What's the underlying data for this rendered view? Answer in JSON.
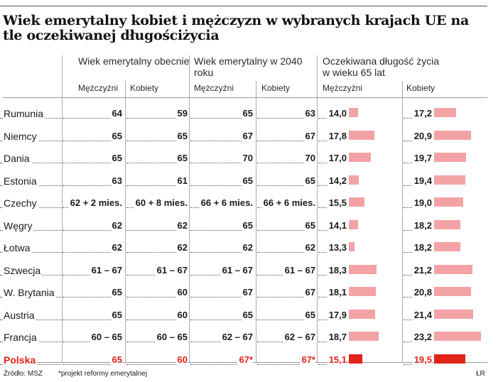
{
  "title": "Wiek emerytalny kobiet i mężczyzn w wybranych krajach UE na tle oczekiwanej długościżycia",
  "groups": [
    {
      "label": "Wiek emerytalny obecnie"
    },
    {
      "label": "Wiek emerytalny w 2040 roku"
    },
    {
      "label": "Oczekiwana długość życia w wieku 65 lat"
    }
  ],
  "subheaders": [
    "Mężczyźni",
    "Kobiety",
    "Mężczyźni",
    "Kobiety",
    "Mężczyźni",
    "Kobiety"
  ],
  "rows": [
    {
      "country": "Rumunia",
      "m_now": "64",
      "k_now": "59",
      "m_2040": "65",
      "k_2040": "63",
      "le_m": "14,0",
      "le_k": "17,2"
    },
    {
      "country": "Niemcy",
      "m_now": "65",
      "k_now": "65",
      "m_2040": "67",
      "k_2040": "67",
      "le_m": "17,8",
      "le_k": "20,9"
    },
    {
      "country": "Dania",
      "m_now": "65",
      "k_now": "65",
      "m_2040": "70",
      "k_2040": "70",
      "le_m": "17,0",
      "le_k": "19,7"
    },
    {
      "country": "Estonia",
      "m_now": "63",
      "k_now": "61",
      "m_2040": "65",
      "k_2040": "65",
      "le_m": "14,2",
      "le_k": "19,4"
    },
    {
      "country": "Czechy",
      "m_now": "62 + 2 mies.",
      "k_now": "60 + 8 mies.",
      "m_2040": "66 + 6 mies.",
      "k_2040": "66 + 6 mies.",
      "le_m": "15,5",
      "le_k": "19,0"
    },
    {
      "country": "Węgry",
      "m_now": "62",
      "k_now": "62",
      "m_2040": "65",
      "k_2040": "65",
      "le_m": "14,1",
      "le_k": "18,2"
    },
    {
      "country": "Łotwa",
      "m_now": "62",
      "k_now": "62",
      "m_2040": "62",
      "k_2040": "62",
      "le_m": "13,3",
      "le_k": "18,2"
    },
    {
      "country": "Szwecja",
      "m_now": "61 – 67",
      "k_now": "61 – 67",
      "m_2040": "61 – 67",
      "k_2040": "61 – 67",
      "le_m": "18,3",
      "le_k": "21,2"
    },
    {
      "country": "W. Brytania",
      "m_now": "65",
      "k_now": "60",
      "m_2040": "67",
      "k_2040": "67",
      "le_m": "18,1",
      "le_k": "20,8"
    },
    {
      "country": "Austria",
      "m_now": "65",
      "k_now": "60",
      "m_2040": "65",
      "k_2040": "65",
      "le_m": "17,9",
      "le_k": "21,4"
    },
    {
      "country": "Francja",
      "m_now": "60 – 65",
      "k_now": "60 – 65",
      "m_2040": "62 – 67",
      "k_2040": "62 – 67",
      "le_m": "18,7",
      "le_k": "23,2"
    },
    {
      "country": "Polska",
      "m_now": "65",
      "k_now": "60",
      "m_2040": "67*",
      "k_2040": "67*",
      "le_m": "15,1",
      "le_k": "19,5",
      "highlight": true
    }
  ],
  "footer": {
    "source": "Źródło: MSZ",
    "note": "*projekt reformy emerytalnej",
    "credit": "ŁR"
  },
  "chart_data": {
    "type": "table",
    "title": "Wiek emerytalny kobiet i mężczyzn w wybranych krajach UE na tle oczekiwanej długościżycia",
    "columns": [
      "Wiek emerytalny obecnie – Mężczyźni",
      "Wiek emerytalny obecnie – Kobiety",
      "Wiek emerytalny w 2040 roku – Mężczyźni",
      "Wiek emerytalny w 2040 roku – Kobiety",
      "Oczekiwana długość życia w wieku 65 lat – Mężczyźni",
      "Oczekiwana długość życia w wieku 65 lat – Kobiety"
    ],
    "categories": [
      "Rumunia",
      "Niemcy",
      "Dania",
      "Estonia",
      "Czechy",
      "Węgry",
      "Łotwa",
      "Szwecja",
      "W. Brytania",
      "Austria",
      "Francja",
      "Polska"
    ],
    "series": [
      {
        "name": "Mężczyźni",
        "values": [
          14.0,
          17.8,
          17.0,
          14.2,
          15.5,
          14.1,
          13.3,
          18.3,
          18.1,
          17.9,
          18.7,
          15.1
        ]
      },
      {
        "name": "Kobiety",
        "values": [
          17.2,
          20.9,
          19.7,
          19.4,
          19.0,
          18.2,
          18.2,
          21.2,
          20.8,
          21.4,
          23.2,
          19.5
        ]
      }
    ],
    "highlight_category": "Polska",
    "colors": {
      "bar": "#f3a3a6",
      "highlight": "#e2231a"
    }
  }
}
